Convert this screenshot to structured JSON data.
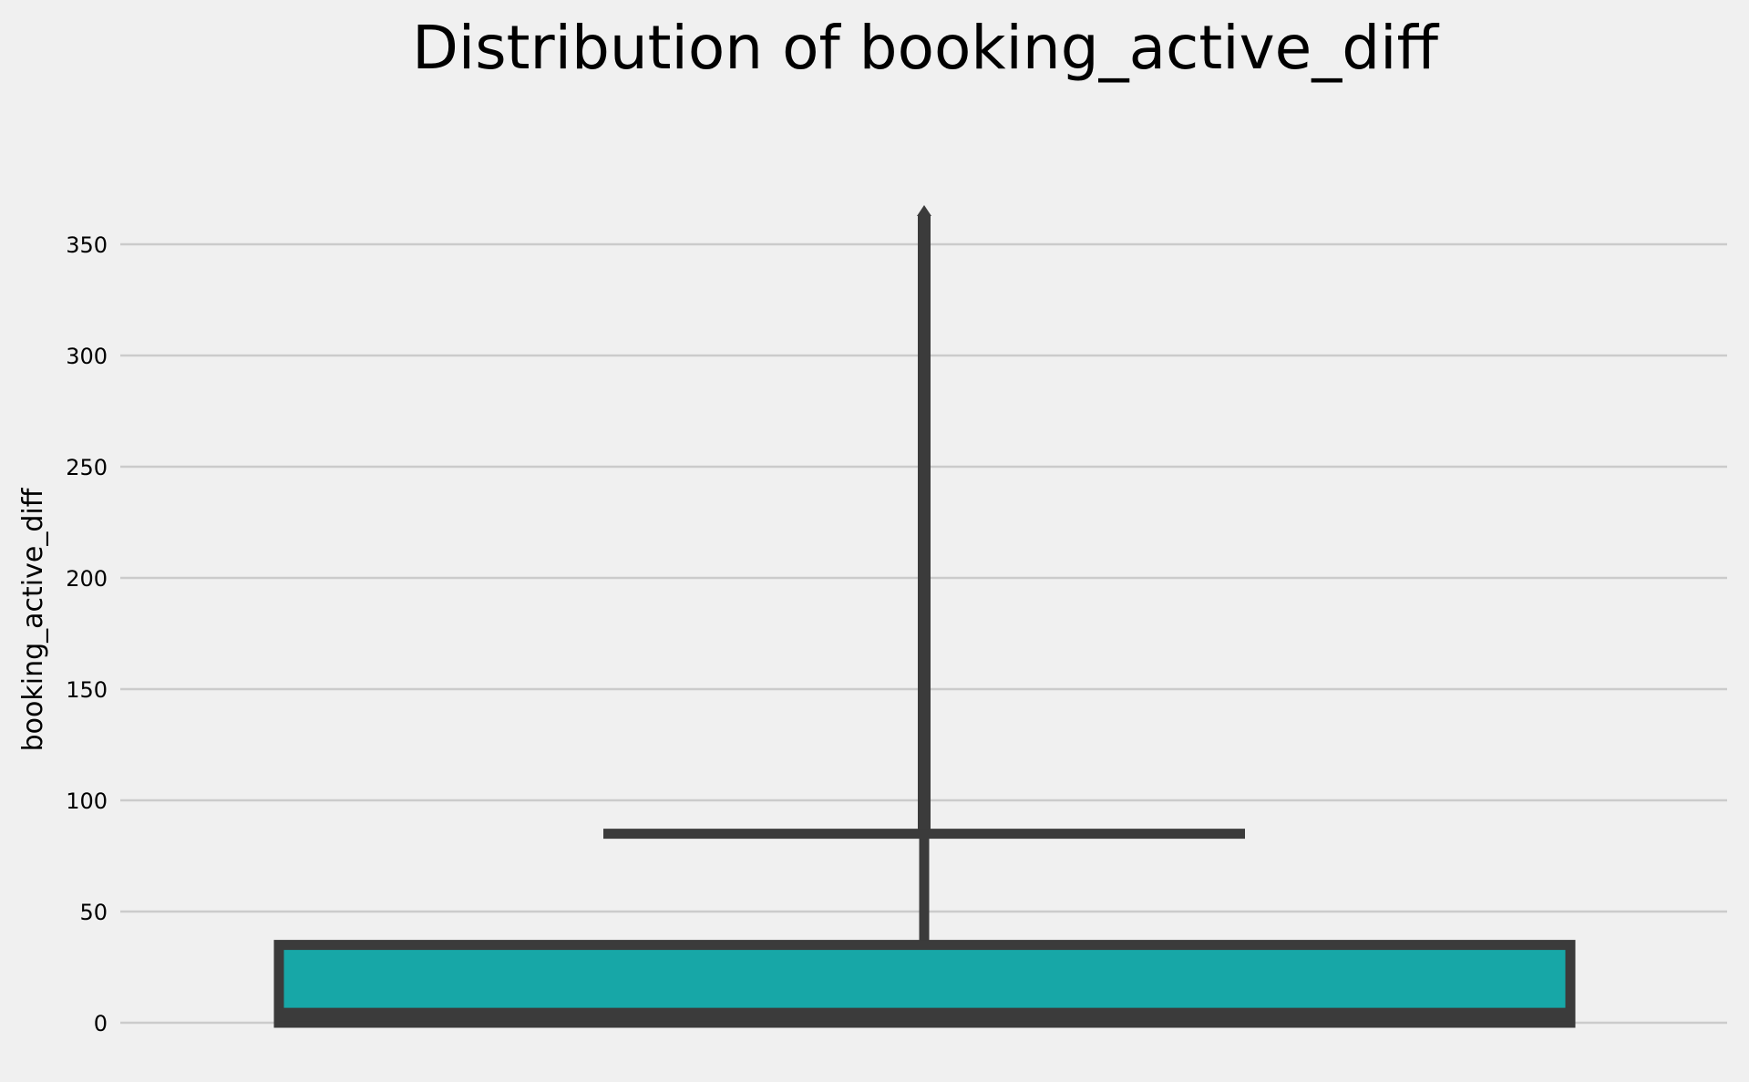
{
  "chart_data": {
    "type": "box",
    "title": "Distribution of booking_active_diff",
    "xlabel": "",
    "ylabel": "booking_active_diff",
    "ylim": [
      -4,
      376
    ],
    "yticks": [
      0,
      50,
      100,
      150,
      200,
      250,
      300,
      350
    ],
    "grid": "horizontal",
    "box": {
      "whisker_low": 0,
      "q1": 2,
      "median": 2,
      "q3": 35,
      "whisker_high": 85,
      "outliers_min": 85,
      "outliers_max": 366
    },
    "colors": {
      "box_fill": "#17a7a7",
      "line": "#3b3b3b",
      "grid": "#cbcbcb",
      "background": "#f0f0f0"
    }
  }
}
